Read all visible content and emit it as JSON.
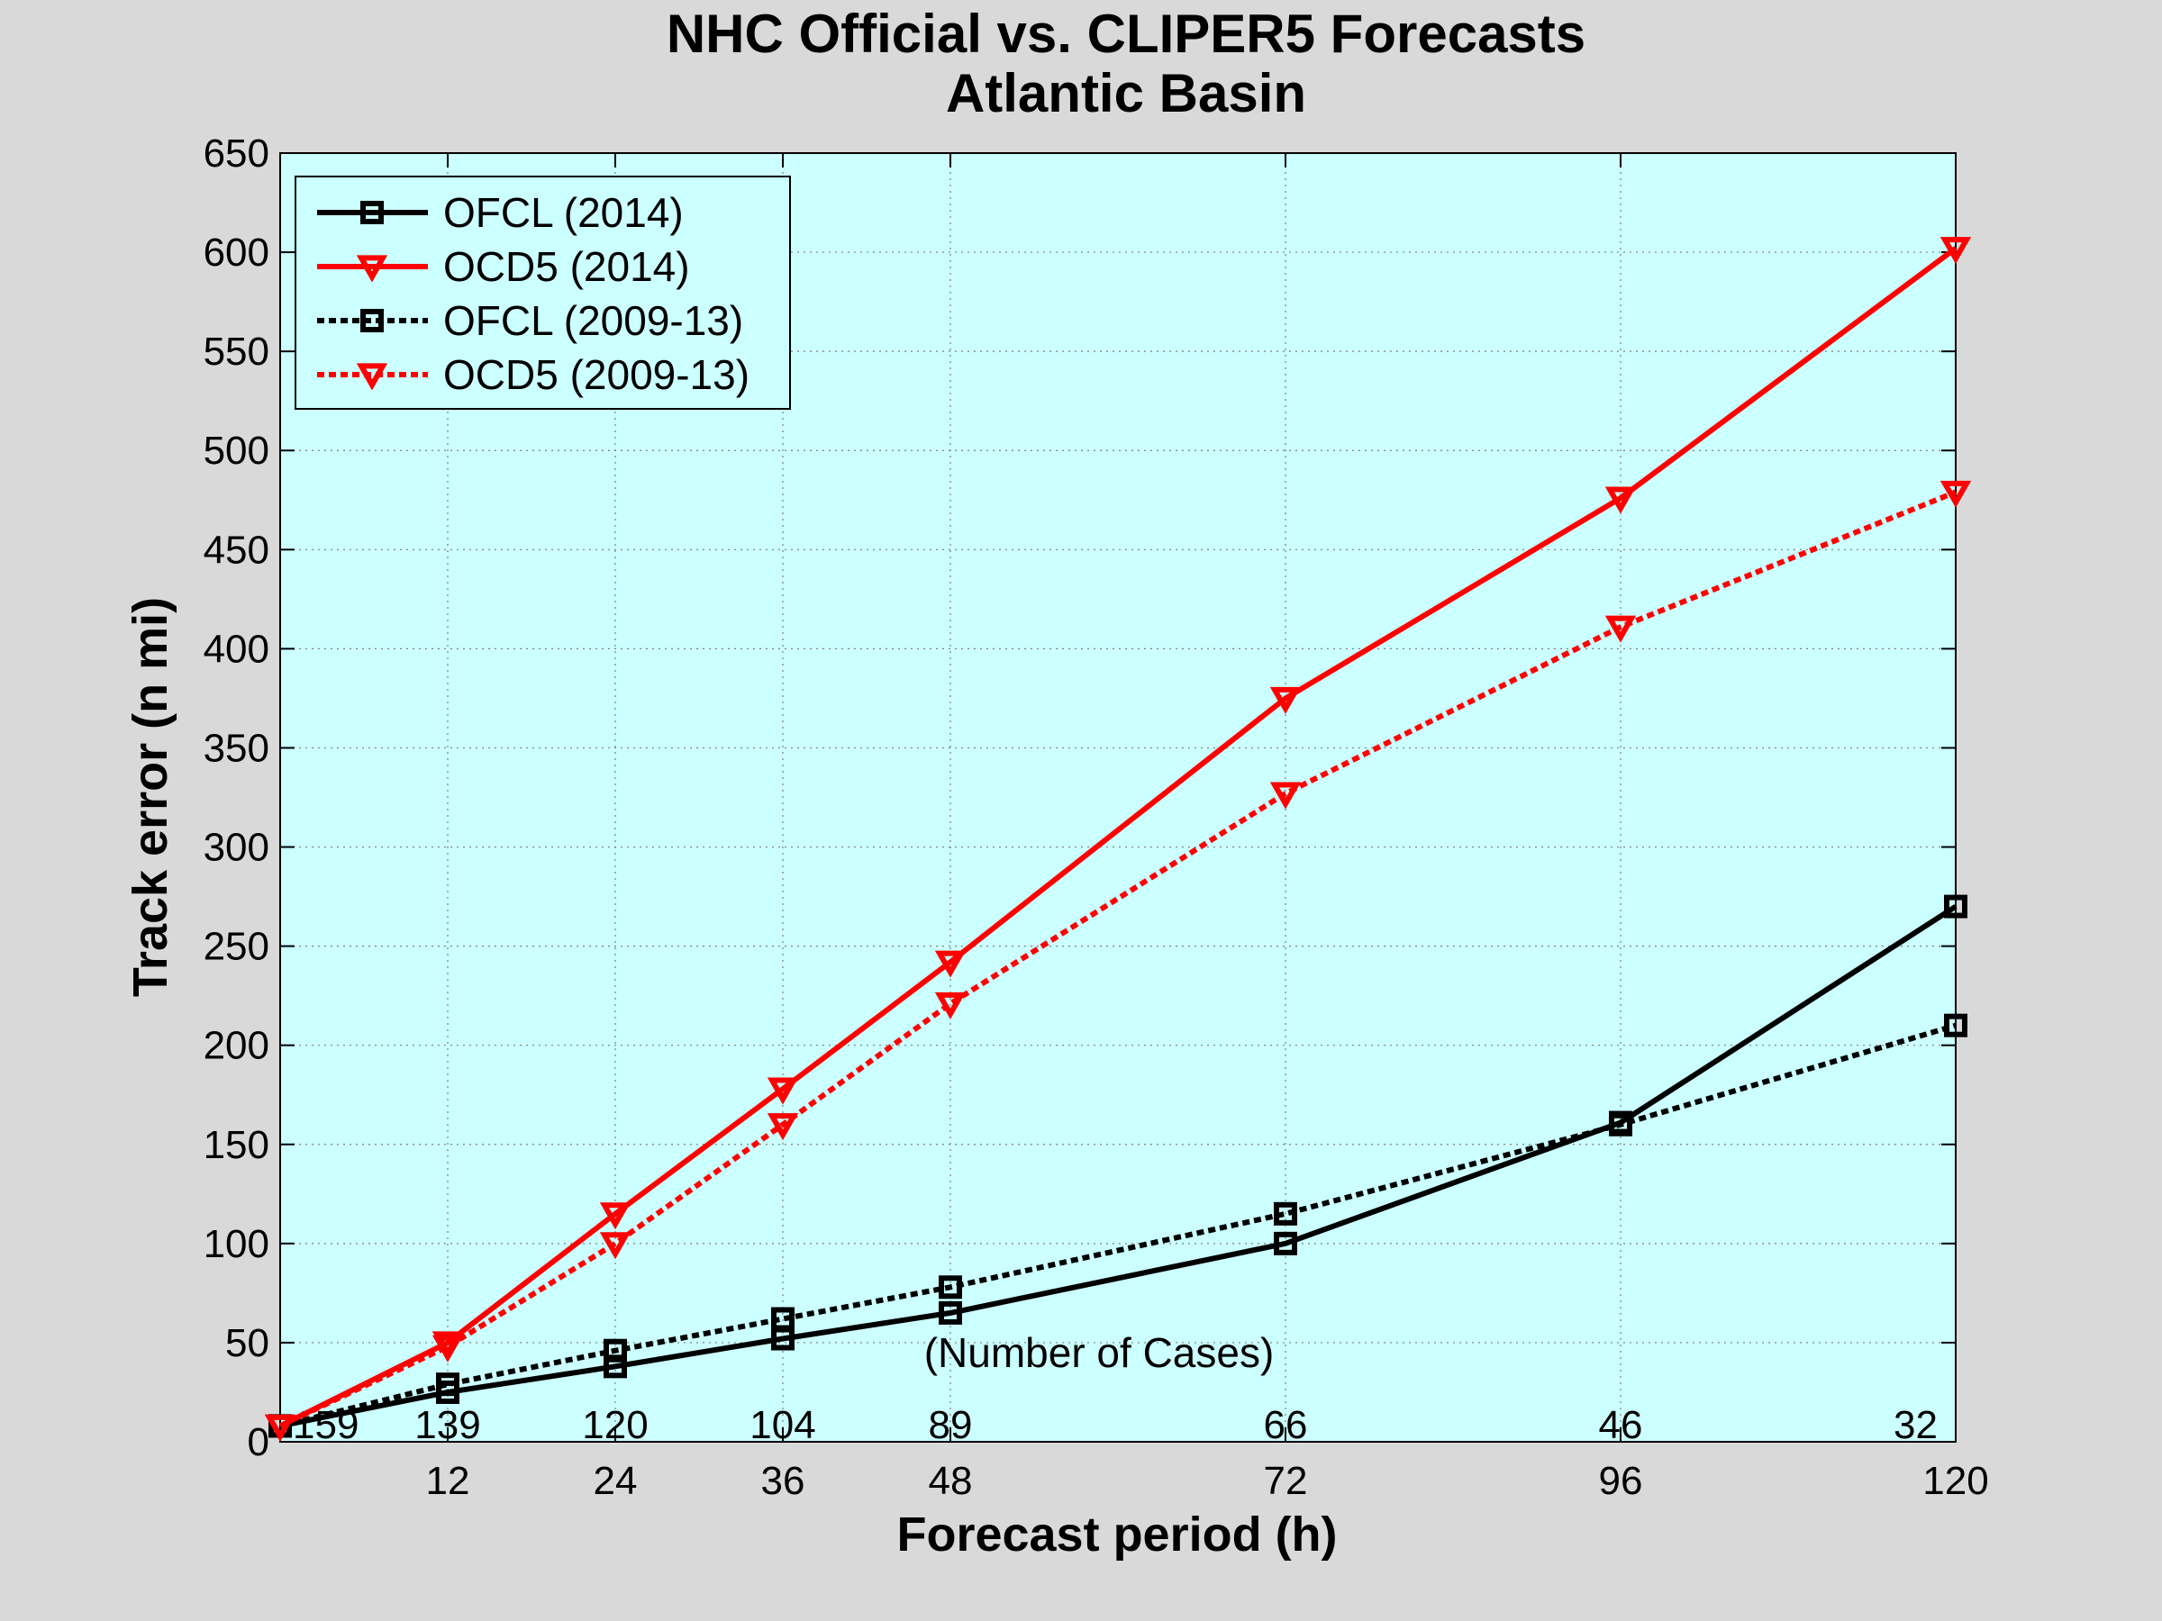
{
  "chart_data": {
    "type": "line",
    "title": "NHC Official vs. CLIPER5 Forecasts",
    "subtitle": "Atlantic Basin",
    "xlabel": "Forecast period (h)",
    "ylabel": "Track error (n mi)",
    "x": [
      0,
      12,
      24,
      36,
      48,
      72,
      96,
      120
    ],
    "x_ticks": [
      12,
      24,
      36,
      48,
      72,
      96,
      120
    ],
    "xlim": [
      0,
      120
    ],
    "y_ticks": [
      0,
      50,
      100,
      150,
      200,
      250,
      300,
      350,
      400,
      450,
      500,
      550,
      600,
      650
    ],
    "ylim": [
      0,
      650
    ],
    "grid": true,
    "legend_position": "top-left",
    "background_color": "#ccffff",
    "annotation": "(Number of Cases)",
    "case_counts": [
      "159",
      "139",
      "120",
      "104",
      "89",
      "66",
      "46",
      "32"
    ],
    "series": [
      {
        "name": "OFCL (2014)",
        "values": [
          8,
          25,
          38,
          52,
          65,
          100,
          161,
          270
        ],
        "color": "#000000",
        "line_style": "solid",
        "marker": "square"
      },
      {
        "name": "OCD5 (2014)",
        "values": [
          8,
          50,
          115,
          178,
          242,
          375,
          476,
          602
        ],
        "color": "#ff0000",
        "line_style": "solid",
        "marker": "triangle-down"
      },
      {
        "name": "OFCL (2009-13)",
        "values": [
          8,
          29,
          46,
          62,
          78,
          115,
          160,
          210
        ],
        "color": "#000000",
        "line_style": "dotted",
        "marker": "square"
      },
      {
        "name": "OCD5 (2009-13)",
        "values": [
          8,
          48,
          100,
          160,
          221,
          327,
          411,
          479
        ],
        "color": "#ff0000",
        "line_style": "dotted",
        "marker": "triangle-down"
      }
    ]
  }
}
